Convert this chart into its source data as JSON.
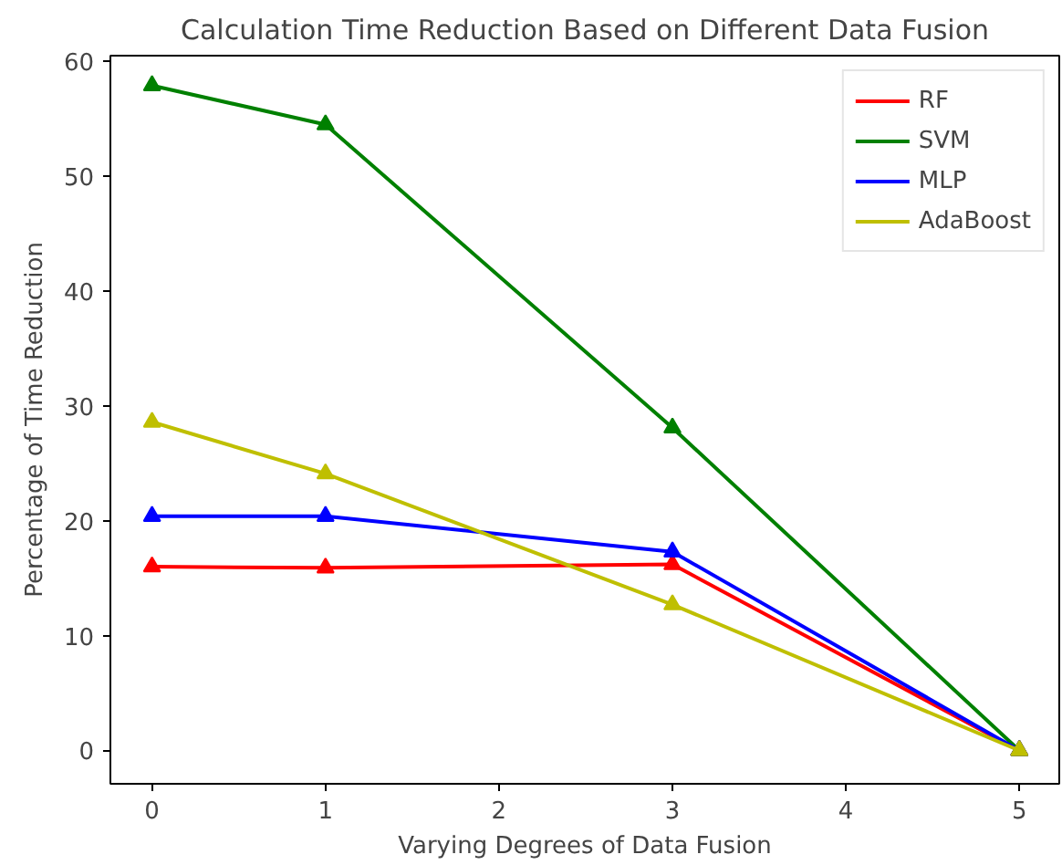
{
  "chart_data": {
    "type": "line",
    "title": "Calculation Time Reduction Based on Different Data Fusion",
    "xlabel": "Varying Degrees of Data Fusion",
    "ylabel": "Percentage of Time Reduction",
    "x": [
      0,
      1,
      3,
      5
    ],
    "xlim": [
      -0.24,
      5.23
    ],
    "xticks": [
      0,
      1,
      2,
      3,
      4,
      5
    ],
    "ylim": [
      -2.9,
      60.5
    ],
    "yticks": [
      0,
      10,
      20,
      30,
      40,
      50,
      60
    ],
    "series": [
      {
        "name": "RF",
        "color": "#ff0000",
        "values": [
          16.0,
          15.9,
          16.2,
          0
        ]
      },
      {
        "name": "SVM",
        "color": "#008000",
        "values": [
          57.9,
          54.5,
          28.1,
          0
        ]
      },
      {
        "name": "MLP",
        "color": "#0000ff",
        "values": [
          20.4,
          20.4,
          17.3,
          0
        ]
      },
      {
        "name": "AdaBoost",
        "color": "#bfbf00",
        "values": [
          28.6,
          24.1,
          12.7,
          0
        ]
      }
    ],
    "marker": "triangle",
    "grid": false,
    "legend": "top right"
  }
}
